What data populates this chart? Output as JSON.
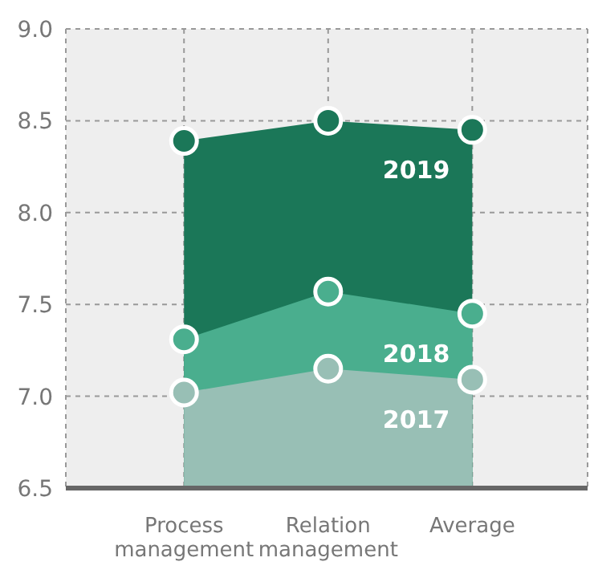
{
  "chart_data": {
    "type": "area",
    "categories": [
      "Process management",
      "Relation management",
      "Average"
    ],
    "series": [
      {
        "name": "2019",
        "color": "#1b7758",
        "values": [
          8.39,
          8.5,
          8.45
        ]
      },
      {
        "name": "2018",
        "color": "#4aae8e",
        "values": [
          7.31,
          7.57,
          7.45
        ]
      },
      {
        "name": "2017",
        "color": "#98bfb5",
        "values": [
          7.02,
          7.15,
          7.09
        ]
      }
    ],
    "ylim": [
      6.5,
      9.0
    ],
    "yticks": [
      {
        "value": 6.5,
        "label": "6.5"
      },
      {
        "value": 7,
        "label": "7.0"
      },
      {
        "value": 7.5,
        "label": "7.5"
      },
      {
        "value": 8,
        "label": "8.0"
      },
      {
        "value": 8.5,
        "label": "8.5"
      },
      {
        "value": 9,
        "label": "9.0"
      }
    ],
    "grid": true,
    "marker": "circle"
  }
}
